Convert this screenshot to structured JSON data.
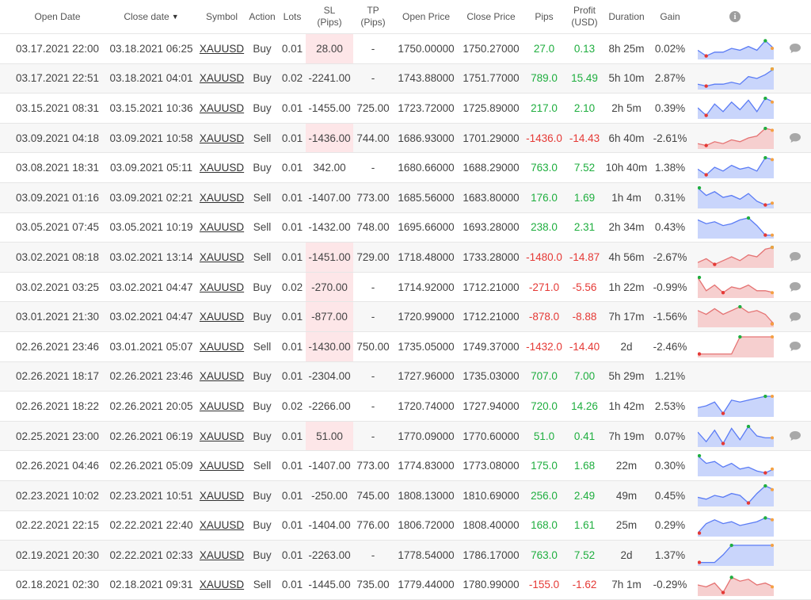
{
  "headers": {
    "open_date": "Open Date",
    "close_date": "Close date",
    "sort_indicator": "▼",
    "symbol": "Symbol",
    "action": "Action",
    "lots": "Lots",
    "sl_top": "SL",
    "sl_bottom": "(Pips)",
    "tp_top": "TP",
    "tp_bottom": "(Pips)",
    "open_price": "Open Price",
    "close_price": "Close Price",
    "pips": "Pips",
    "profit_top": "Profit",
    "profit_bottom": "(USD)",
    "duration": "Duration",
    "gain": "Gain",
    "info": "i"
  },
  "colors": {
    "positive": "#1fae3f",
    "negative": "#e53935",
    "sl_highlight": "#fde6e8",
    "spark_up": "#5b7cf5",
    "spark_down": "#e57373"
  },
  "trades": [
    {
      "open": "03.17.2021 22:00",
      "close": "03.18.2021 06:25",
      "symbol": "XAUUSD",
      "action": "Buy",
      "lots": "0.01",
      "sl": "28.00",
      "tp": "-",
      "open_price": "1750.00000",
      "close_price": "1750.27000",
      "pips": "27.0",
      "profit": "0.13",
      "duration": "8h 25m",
      "gain": "0.02%",
      "sl_hl": true,
      "win": true,
      "comment": true,
      "spark": [
        0.4,
        0.1,
        0.3,
        0.3,
        0.5,
        0.4,
        0.6,
        0.4,
        0.9,
        0.5
      ]
    },
    {
      "open": "03.17.2021 22:51",
      "close": "03.18.2021 04:01",
      "symbol": "XAUUSD",
      "action": "Buy",
      "lots": "0.02",
      "sl": "-2241.00",
      "tp": "-",
      "open_price": "1743.88000",
      "close_price": "1751.77000",
      "pips": "789.0",
      "profit": "15.49",
      "duration": "5h 10m",
      "gain": "2.87%",
      "sl_hl": false,
      "win": true,
      "comment": false,
      "spark": [
        0.2,
        0.1,
        0.2,
        0.2,
        0.3,
        0.2,
        0.6,
        0.5,
        0.7,
        1.0
      ]
    },
    {
      "open": "03.15.2021 08:31",
      "close": "03.15.2021 10:36",
      "symbol": "XAUUSD",
      "action": "Buy",
      "lots": "0.01",
      "sl": "-1455.00",
      "tp": "725.00",
      "open_price": "1723.72000",
      "close_price": "1725.89000",
      "pips": "217.0",
      "profit": "2.10",
      "duration": "2h 5m",
      "gain": "0.39%",
      "sl_hl": false,
      "win": true,
      "comment": false,
      "spark": [
        0.5,
        0.1,
        0.7,
        0.3,
        0.8,
        0.4,
        0.9,
        0.3,
        1.0,
        0.8
      ]
    },
    {
      "open": "03.09.2021 04:18",
      "close": "03.09.2021 10:58",
      "symbol": "XAUUSD",
      "action": "Sell",
      "lots": "0.01",
      "sl": "-1436.00",
      "tp": "744.00",
      "open_price": "1686.93000",
      "close_price": "1701.29000",
      "pips": "-1436.0",
      "profit": "-14.43",
      "duration": "6h 40m",
      "gain": "-2.61%",
      "sl_hl": true,
      "win": false,
      "comment": true,
      "spark": [
        0.2,
        0.1,
        0.3,
        0.2,
        0.4,
        0.3,
        0.5,
        0.6,
        1.0,
        0.9
      ]
    },
    {
      "open": "03.08.2021 18:31",
      "close": "03.09.2021 05:11",
      "symbol": "XAUUSD",
      "action": "Buy",
      "lots": "0.01",
      "sl": "342.00",
      "tp": "-",
      "open_price": "1680.66000",
      "close_price": "1688.29000",
      "pips": "763.0",
      "profit": "7.52",
      "duration": "10h 40m",
      "gain": "1.38%",
      "sl_hl": false,
      "win": true,
      "comment": false,
      "spark": [
        0.4,
        0.1,
        0.5,
        0.3,
        0.6,
        0.4,
        0.5,
        0.3,
        1.0,
        0.9
      ]
    },
    {
      "open": "03.09.2021 01:16",
      "close": "03.09.2021 02:21",
      "symbol": "XAUUSD",
      "action": "Sell",
      "lots": "0.01",
      "sl": "-1407.00",
      "tp": "773.00",
      "open_price": "1685.56000",
      "close_price": "1683.80000",
      "pips": "176.0",
      "profit": "1.69",
      "duration": "1h 4m",
      "gain": "0.31%",
      "sl_hl": false,
      "win": true,
      "comment": false,
      "spark": [
        1.0,
        0.6,
        0.8,
        0.5,
        0.6,
        0.4,
        0.7,
        0.3,
        0.1,
        0.2
      ]
    },
    {
      "open": "03.05.2021 07:45",
      "close": "03.05.2021 10:19",
      "symbol": "XAUUSD",
      "action": "Sell",
      "lots": "0.01",
      "sl": "-1432.00",
      "tp": "748.00",
      "open_price": "1695.66000",
      "close_price": "1693.28000",
      "pips": "238.0",
      "profit": "2.31",
      "duration": "2h 34m",
      "gain": "0.43%",
      "sl_hl": false,
      "win": true,
      "comment": false,
      "spark": [
        0.9,
        0.7,
        0.8,
        0.6,
        0.7,
        0.9,
        1.0,
        0.6,
        0.1,
        0.1
      ]
    },
    {
      "open": "03.02.2021 08:18",
      "close": "03.02.2021 13:14",
      "symbol": "XAUUSD",
      "action": "Sell",
      "lots": "0.01",
      "sl": "-1451.00",
      "tp": "729.00",
      "open_price": "1718.48000",
      "close_price": "1733.28000",
      "pips": "-1480.0",
      "profit": "-14.87",
      "duration": "4h 56m",
      "gain": "-2.67%",
      "sl_hl": true,
      "win": false,
      "comment": true,
      "spark": [
        0.2,
        0.4,
        0.1,
        0.3,
        0.5,
        0.3,
        0.6,
        0.5,
        0.9,
        1.0
      ]
    },
    {
      "open": "03.02.2021 03:25",
      "close": "03.02.2021 04:47",
      "symbol": "XAUUSD",
      "action": "Buy",
      "lots": "0.02",
      "sl": "-270.00",
      "tp": "-",
      "open_price": "1714.92000",
      "close_price": "1712.21000",
      "pips": "-271.0",
      "profit": "-5.56",
      "duration": "1h 22m",
      "gain": "-0.99%",
      "sl_hl": true,
      "win": false,
      "comment": true,
      "spark": [
        1.0,
        0.3,
        0.6,
        0.2,
        0.5,
        0.4,
        0.6,
        0.3,
        0.3,
        0.2
      ]
    },
    {
      "open": "03.01.2021 21:30",
      "close": "03.02.2021 04:47",
      "symbol": "XAUUSD",
      "action": "Buy",
      "lots": "0.01",
      "sl": "-877.00",
      "tp": "-",
      "open_price": "1720.99000",
      "close_price": "1712.21000",
      "pips": "-878.0",
      "profit": "-8.88",
      "duration": "7h 17m",
      "gain": "-1.56%",
      "sl_hl": true,
      "win": false,
      "comment": true,
      "spark": [
        0.8,
        0.6,
        0.9,
        0.6,
        0.8,
        1.0,
        0.7,
        0.8,
        0.6,
        0.1
      ]
    },
    {
      "open": "02.26.2021 23:46",
      "close": "03.01.2021 05:07",
      "symbol": "XAUUSD",
      "action": "Sell",
      "lots": "0.01",
      "sl": "-1430.00",
      "tp": "750.00",
      "open_price": "1735.05000",
      "close_price": "1749.37000",
      "pips": "-1432.0",
      "profit": "-14.40",
      "duration": "2d",
      "gain": "-2.46%",
      "sl_hl": true,
      "win": false,
      "comment": true,
      "spark": [
        0.1,
        0.1,
        0.1,
        0.1,
        0.1,
        1.0,
        1.0,
        1.0,
        1.0,
        1.0
      ]
    },
    {
      "open": "02.26.2021 18:17",
      "close": "02.26.2021 23:46",
      "symbol": "XAUUSD",
      "action": "Buy",
      "lots": "0.01",
      "sl": "-2304.00",
      "tp": "-",
      "open_price": "1727.96000",
      "close_price": "1735.03000",
      "pips": "707.0",
      "profit": "7.00",
      "duration": "5h 29m",
      "gain": "1.21%",
      "sl_hl": false,
      "win": true,
      "comment": false,
      "spark": null
    },
    {
      "open": "02.26.2021 18:22",
      "close": "02.26.2021 20:05",
      "symbol": "XAUUSD",
      "action": "Buy",
      "lots": "0.02",
      "sl": "-2266.00",
      "tp": "-",
      "open_price": "1720.74000",
      "close_price": "1727.94000",
      "pips": "720.0",
      "profit": "14.26",
      "duration": "1h 42m",
      "gain": "2.53%",
      "sl_hl": false,
      "win": true,
      "comment": false,
      "spark": [
        0.4,
        0.5,
        0.7,
        0.1,
        0.8,
        0.7,
        0.8,
        0.9,
        1.0,
        1.0
      ]
    },
    {
      "open": "02.25.2021 23:00",
      "close": "02.26.2021 06:19",
      "symbol": "XAUUSD",
      "action": "Buy",
      "lots": "0.01",
      "sl": "51.00",
      "tp": "-",
      "open_price": "1770.09000",
      "close_price": "1770.60000",
      "pips": "51.0",
      "profit": "0.41",
      "duration": "7h 19m",
      "gain": "0.07%",
      "sl_hl": true,
      "win": true,
      "comment": true,
      "spark": [
        0.7,
        0.2,
        0.8,
        0.1,
        0.9,
        0.3,
        1.0,
        0.5,
        0.4,
        0.4
      ]
    },
    {
      "open": "02.26.2021 04:46",
      "close": "02.26.2021 05:09",
      "symbol": "XAUUSD",
      "action": "Sell",
      "lots": "0.01",
      "sl": "-1407.00",
      "tp": "773.00",
      "open_price": "1774.83000",
      "close_price": "1773.08000",
      "pips": "175.0",
      "profit": "1.68",
      "duration": "22m",
      "gain": "0.30%",
      "sl_hl": false,
      "win": true,
      "comment": false,
      "spark": [
        1.0,
        0.6,
        0.7,
        0.4,
        0.6,
        0.3,
        0.4,
        0.2,
        0.1,
        0.3
      ]
    },
    {
      "open": "02.23.2021 10:02",
      "close": "02.23.2021 10:51",
      "symbol": "XAUUSD",
      "action": "Buy",
      "lots": "0.01",
      "sl": "-250.00",
      "tp": "745.00",
      "open_price": "1808.13000",
      "close_price": "1810.69000",
      "pips": "256.0",
      "profit": "2.49",
      "duration": "49m",
      "gain": "0.45%",
      "sl_hl": false,
      "win": true,
      "comment": false,
      "spark": [
        0.4,
        0.3,
        0.5,
        0.4,
        0.6,
        0.5,
        0.1,
        0.6,
        1.0,
        0.8
      ]
    },
    {
      "open": "02.22.2021 22:15",
      "close": "02.22.2021 22:40",
      "symbol": "XAUUSD",
      "action": "Buy",
      "lots": "0.01",
      "sl": "-1404.00",
      "tp": "776.00",
      "open_price": "1806.72000",
      "close_price": "1808.40000",
      "pips": "168.0",
      "profit": "1.61",
      "duration": "25m",
      "gain": "0.29%",
      "sl_hl": false,
      "win": true,
      "comment": false,
      "spark": [
        0.1,
        0.6,
        0.8,
        0.6,
        0.7,
        0.5,
        0.6,
        0.7,
        0.9,
        0.8
      ]
    },
    {
      "open": "02.19.2021 20:30",
      "close": "02.22.2021 02:33",
      "symbol": "XAUUSD",
      "action": "Buy",
      "lots": "0.01",
      "sl": "-2263.00",
      "tp": "-",
      "open_price": "1778.54000",
      "close_price": "1786.17000",
      "pips": "763.0",
      "profit": "7.52",
      "duration": "2d",
      "gain": "1.37%",
      "sl_hl": false,
      "win": true,
      "comment": false,
      "spark": [
        0.1,
        0.1,
        0.1,
        0.5,
        1.0,
        1.0,
        1.0,
        1.0,
        1.0,
        1.0
      ]
    },
    {
      "open": "02.18.2021 02:30",
      "close": "02.18.2021 09:31",
      "symbol": "XAUUSD",
      "action": "Sell",
      "lots": "0.01",
      "sl": "-1445.00",
      "tp": "735.00",
      "open_price": "1779.44000",
      "close_price": "1780.99000",
      "pips": "-155.0",
      "profit": "-1.62",
      "duration": "7h 1m",
      "gain": "-0.29%",
      "sl_hl": false,
      "win": false,
      "comment": false,
      "spark": [
        0.5,
        0.4,
        0.6,
        0.1,
        0.9,
        0.7,
        0.8,
        0.5,
        0.6,
        0.4
      ]
    }
  ]
}
